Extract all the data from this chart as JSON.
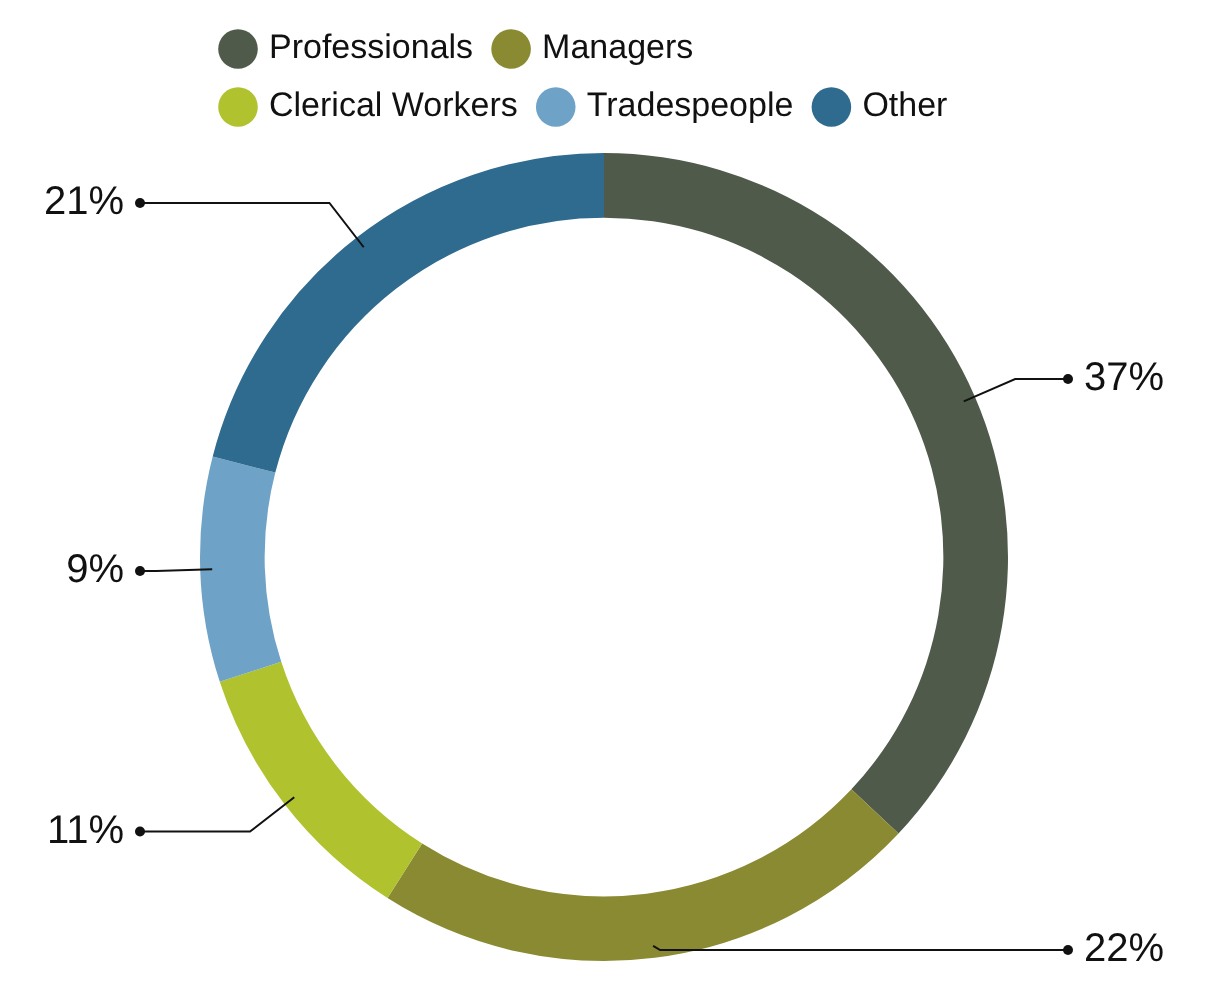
{
  "chart_data": {
    "type": "donut",
    "categories": [
      "Professionals",
      "Managers",
      "Clerical Workers",
      "Tradespeople",
      "Other"
    ],
    "values": [
      37,
      22,
      11,
      9,
      21
    ],
    "colors": [
      "#4f5a4a",
      "#8a8a32",
      "#b0c22e",
      "#6ea3c7",
      "#2f6a8f"
    ],
    "value_labels": [
      "37%",
      "22%",
      "11%",
      "9%",
      "21%"
    ],
    "legend": "top left"
  }
}
